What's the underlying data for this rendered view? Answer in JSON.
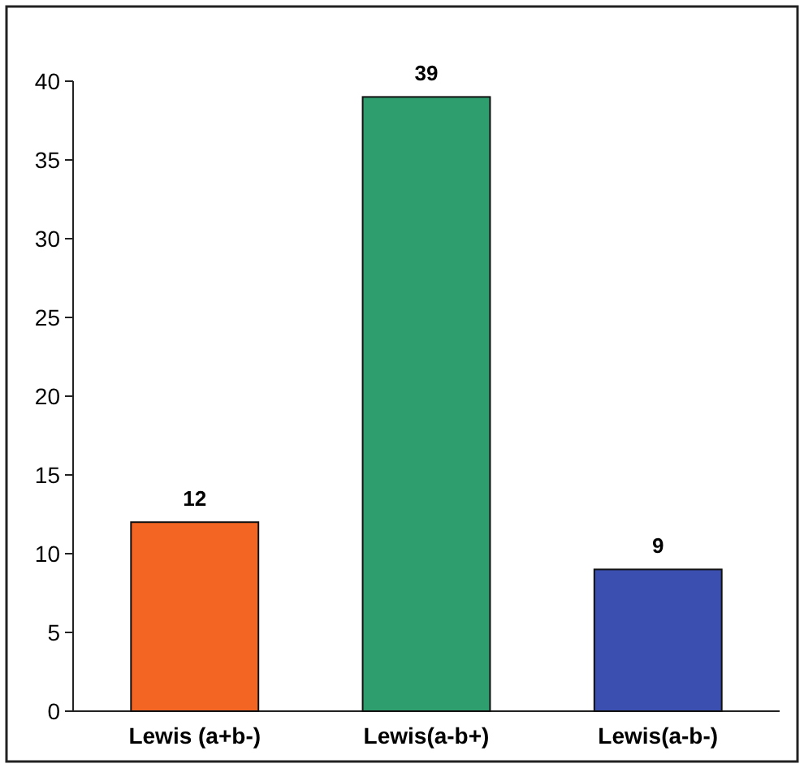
{
  "chart_data": {
    "type": "bar",
    "categories": [
      "Lewis (a+b-)",
      "Lewis(a-b+)",
      "Lewis(a-b-)"
    ],
    "values": [
      12,
      39,
      9
    ],
    "colors": [
      "#f26522",
      "#2e9e6e",
      "#3a4fb0"
    ],
    "ylim": [
      0,
      40
    ],
    "yticks": [
      0,
      5,
      10,
      15,
      20,
      25,
      30,
      35,
      40
    ],
    "data_labels": true,
    "grid": false
  }
}
